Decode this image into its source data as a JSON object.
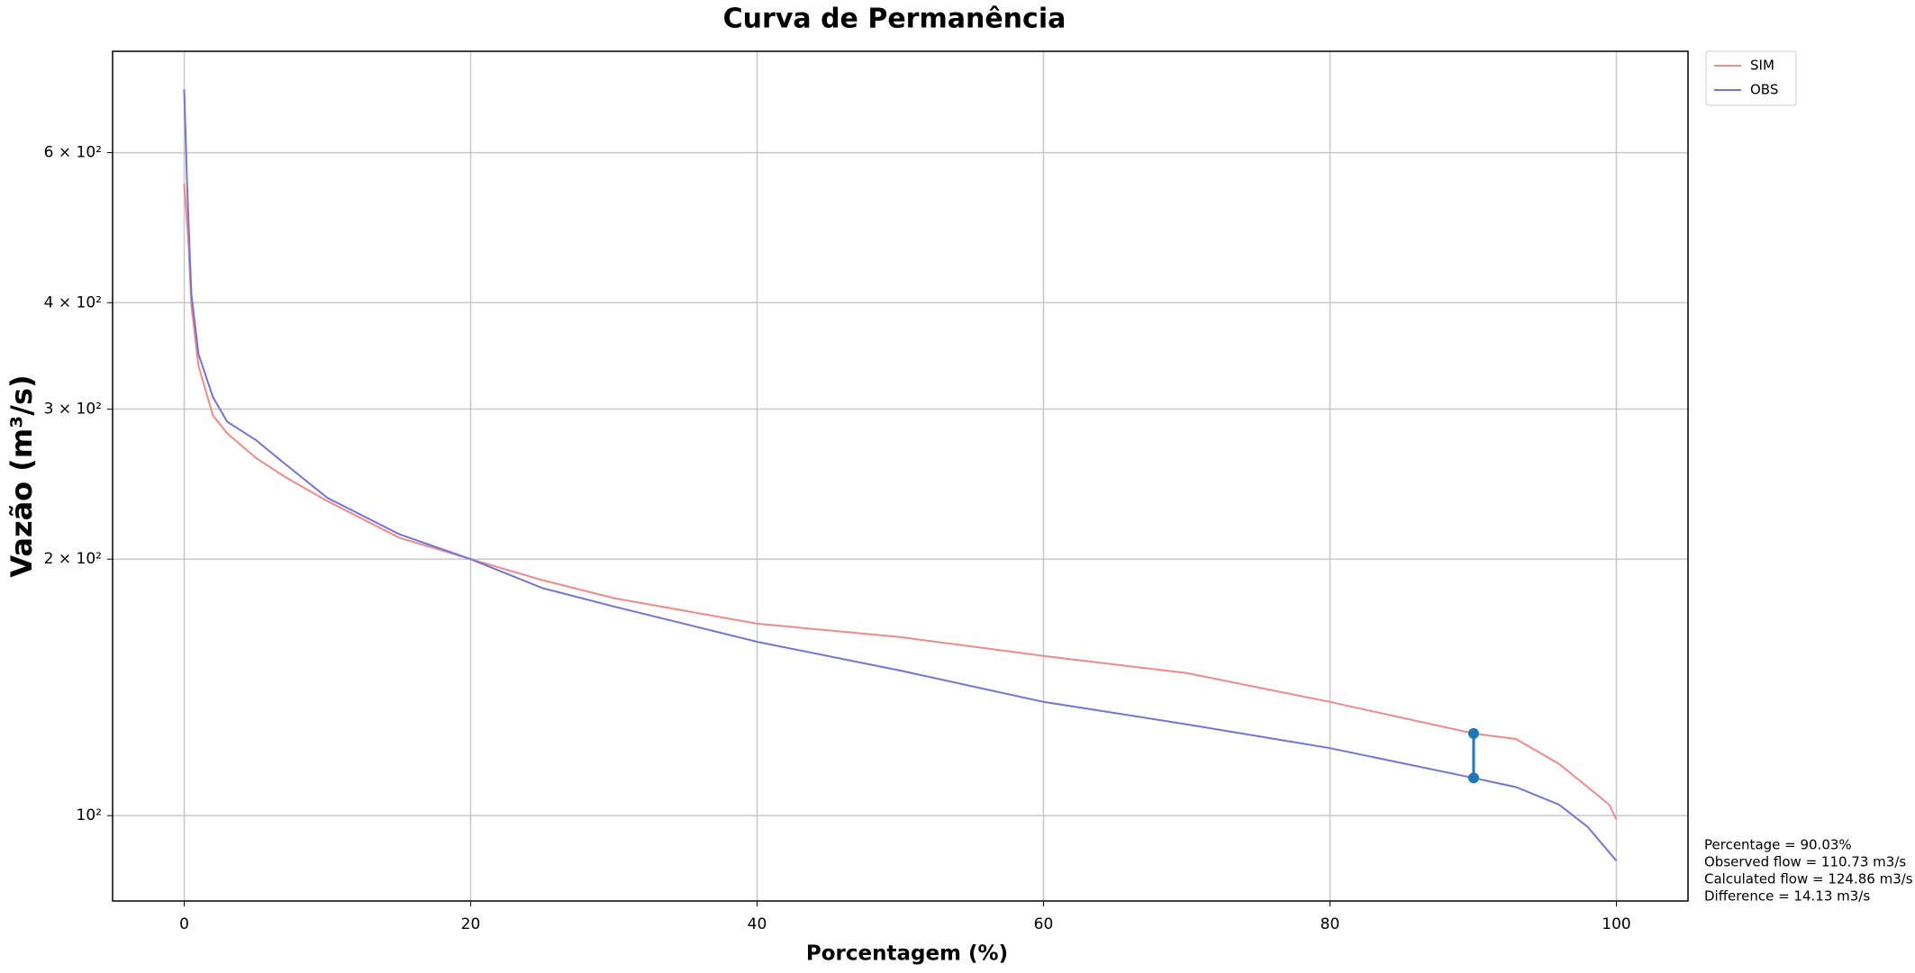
{
  "chart_data": {
    "type": "line",
    "title": "Curva de Permanência",
    "x_label": "Porcentagem (%)",
    "y_label": "Vazão (m³/s)",
    "log_y": true,
    "grid": true,
    "legend": "outside upper right",
    "xlim": [
      -5,
      105
    ],
    "ylim": [
      79.4,
      789
    ],
    "xticks": [
      0,
      20,
      40,
      60,
      80,
      100
    ],
    "yticks": [
      {
        "value": 100,
        "label": "10²"
      },
      {
        "value": 200,
        "label": "2 × 10²"
      },
      {
        "value": 300,
        "label": "3 × 10²"
      },
      {
        "value": 400,
        "label": "4 × 10²"
      },
      {
        "value": 600,
        "label": "6 × 10²"
      }
    ],
    "series": [
      {
        "name": "SIM",
        "color": "#f08a8a",
        "x": [
          0,
          0.3,
          0.5,
          1,
          2,
          3,
          5,
          7,
          10,
          15,
          20,
          25,
          30,
          40,
          50,
          60,
          70,
          80,
          90.03,
          93,
          96,
          98,
          99.5,
          100
        ],
        "values": [
          552,
          468,
          397,
          337,
          295,
          281,
          263,
          250,
          234,
          212,
          200,
          189,
          180,
          168,
          162,
          154,
          147,
          136,
          124.86,
          123,
          115,
          108,
          103,
          99
        ]
      },
      {
        "name": "OBS",
        "color": "#7474d6",
        "x": [
          0,
          0.2,
          0.5,
          1,
          2,
          3,
          5,
          7,
          10,
          15,
          20,
          25,
          30,
          40,
          50,
          60,
          70,
          80,
          90.03,
          93,
          96,
          98,
          100
        ],
        "values": [
          712,
          552,
          410,
          348,
          310,
          290,
          276,
          259,
          236,
          214,
          200,
          185,
          176,
          160,
          148,
          136,
          128,
          120,
          110.73,
          108,
          103,
          97,
          88.5
        ]
      }
    ],
    "highlight": {
      "x": 90.03,
      "observed": 110.73,
      "calculated": 124.86,
      "color": "#1f77b4"
    },
    "annotations": [
      "Percentage = 90.03%",
      "Observed flow = 110.73 m3/s",
      "Calculated flow = 124.86 m3/s",
      "Difference = 14.13 m3/s"
    ]
  }
}
